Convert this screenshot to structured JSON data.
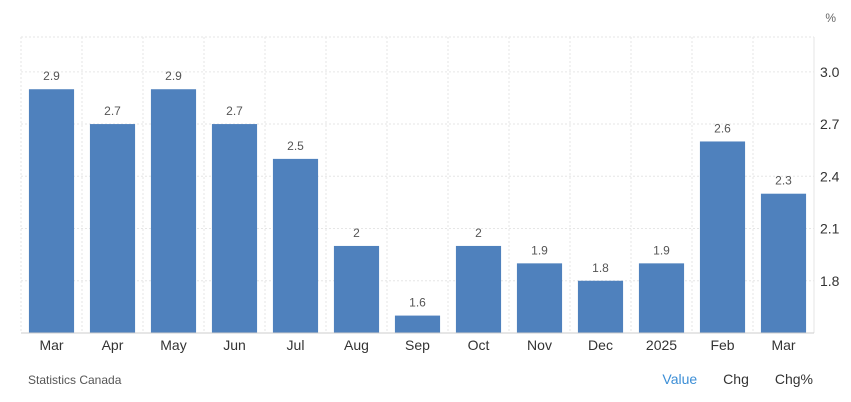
{
  "chart_data": {
    "type": "bar",
    "categories": [
      "Mar",
      "Apr",
      "May",
      "Jun",
      "Jul",
      "Aug",
      "Sep",
      "Oct",
      "Nov",
      "Dec",
      "2025",
      "Feb",
      "Mar"
    ],
    "values": [
      2.9,
      2.7,
      2.9,
      2.7,
      2.5,
      2,
      1.6,
      2,
      1.9,
      1.8,
      1.9,
      2.6,
      2.3
    ],
    "value_labels": [
      "2.9",
      "2.7",
      "2.9",
      "2.7",
      "2.5",
      "2",
      "1.6",
      "2",
      "1.9",
      "1.8",
      "1.9",
      "2.6",
      "2.3"
    ],
    "y_ticks": [
      "1.8",
      "2.1",
      "2.4",
      "2.7",
      "3.0"
    ],
    "y_unit": "%",
    "ylim": [
      1.5,
      3.2
    ],
    "bar_color": "#4f81bd",
    "grid": true,
    "y_axis_position": "right"
  },
  "footer": {
    "source": "Statistics Canada",
    "tabs": [
      {
        "label": "Value",
        "active": true
      },
      {
        "label": "Chg",
        "active": false
      },
      {
        "label": "Chg%",
        "active": false
      }
    ]
  },
  "colors": {
    "accent": "#3c8ed6",
    "grid": "#e6e6e6"
  }
}
